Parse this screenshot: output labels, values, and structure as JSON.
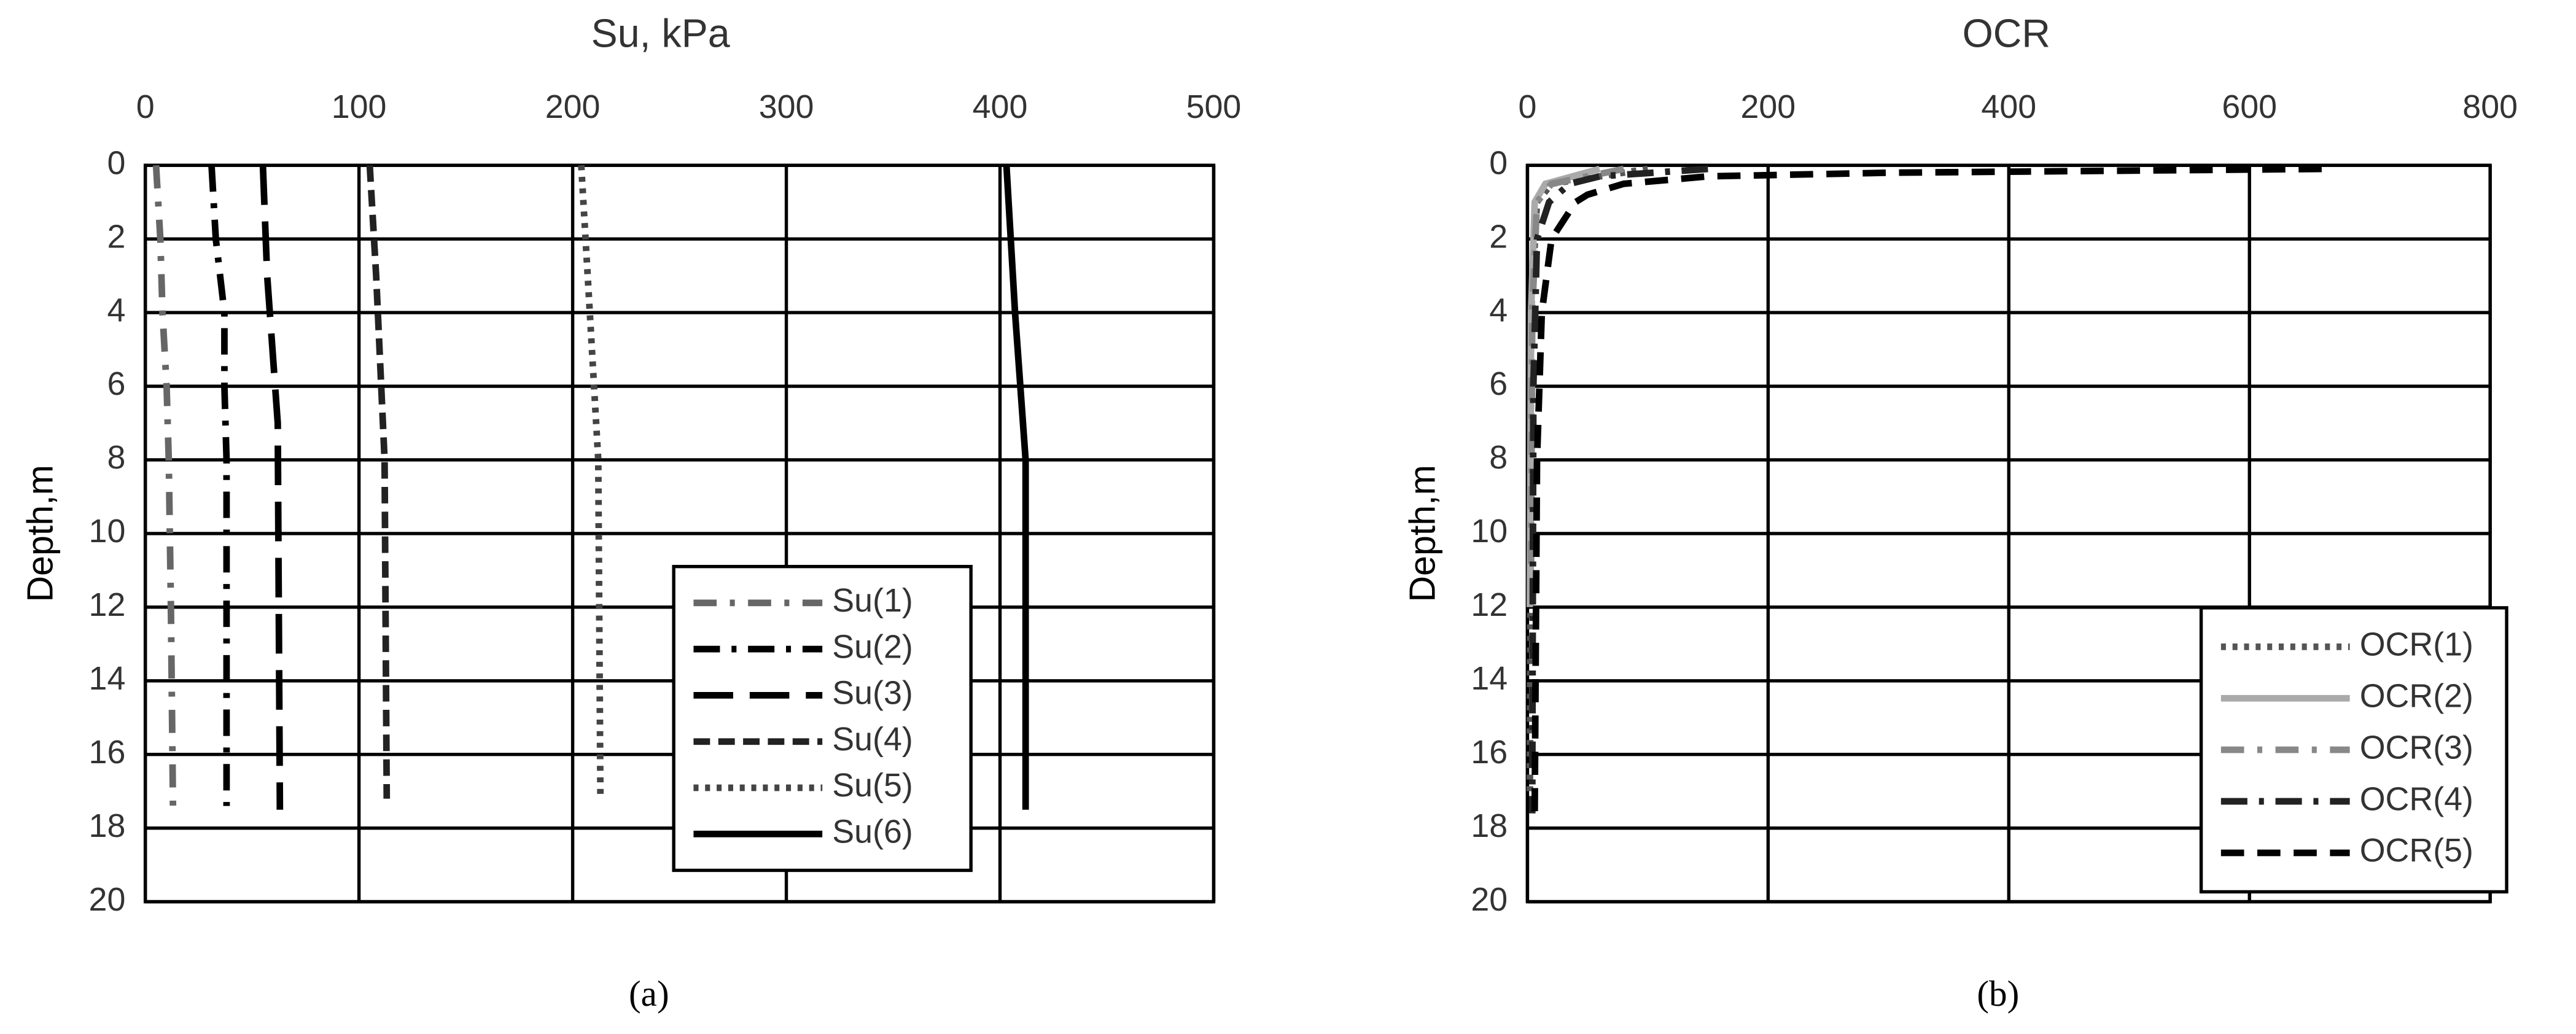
{
  "chart_data": [
    {
      "type": "line",
      "title": "Su, kPa",
      "y_label": "Depth,m",
      "caption": "(a)",
      "xlim": [
        0,
        500
      ],
      "xticks": [
        0,
        100,
        200,
        300,
        400,
        500
      ],
      "ylim": [
        0,
        20
      ],
      "yticks": [
        0,
        2,
        4,
        6,
        8,
        10,
        12,
        14,
        16,
        18,
        20
      ],
      "y_inverted": true,
      "grid": true,
      "series": [
        {
          "name": "Su(1)",
          "color": "#666666",
          "dash": "14 8 3 8",
          "width": 4,
          "x": [
            5,
            7,
            8,
            10,
            11,
            12,
            13
          ],
          "values": [
            0,
            2,
            4,
            6,
            8,
            12,
            17.6
          ]
        },
        {
          "name": "Su(2)",
          "color": "#000000",
          "dash": "16 7 3 7",
          "width": 4,
          "x": [
            31,
            33,
            37,
            37,
            38,
            38
          ],
          "values": [
            0,
            2,
            4,
            6,
            8,
            17.4
          ]
        },
        {
          "name": "Su(3)",
          "color": "#000000",
          "dash": "24 10",
          "width": 4,
          "x": [
            55,
            57,
            62,
            63
          ],
          "values": [
            0,
            3,
            7,
            17.5
          ]
        },
        {
          "name": "Su(4)",
          "color": "#222222",
          "dash": "10 5",
          "width": 4,
          "x": [
            105,
            108,
            112,
            113
          ],
          "values": [
            0,
            3,
            8,
            17.2
          ]
        },
        {
          "name": "Su(5)",
          "color": "#444444",
          "dash": "3 4",
          "width": 4,
          "x": [
            204,
            207,
            212,
            213
          ],
          "values": [
            0,
            3,
            8,
            17.2
          ]
        },
        {
          "name": "Su(6)",
          "color": "#000000",
          "dash": "",
          "width": 4,
          "x": [
            403,
            407,
            412,
            412
          ],
          "values": [
            0,
            4,
            8,
            17.5
          ]
        }
      ]
    },
    {
      "type": "line",
      "title": "OCR",
      "y_label": "Depth,m",
      "caption": "(b)",
      "xlim": [
        0,
        800
      ],
      "xticks": [
        0,
        200,
        400,
        600,
        800
      ],
      "ylim": [
        0,
        20
      ],
      "yticks": [
        0,
        2,
        4,
        6,
        8,
        10,
        12,
        14,
        16,
        18,
        20
      ],
      "y_inverted": true,
      "grid": true,
      "series": [
        {
          "name": "OCR(1)",
          "color": "#555555",
          "dash": "3 4",
          "width": 4,
          "x": [
            100,
            20,
            8,
            3,
            2
          ],
          "values": [
            0.1,
            0.5,
            1,
            4,
            17
          ]
        },
        {
          "name": "OCR(2)",
          "color": "#aaaaaa",
          "dash": "",
          "width": 4,
          "x": [
            60,
            15,
            6,
            3,
            2
          ],
          "values": [
            0.1,
            0.5,
            1,
            4,
            12
          ]
        },
        {
          "name": "OCR(3)",
          "color": "#888888",
          "dash": "14 8 3 8",
          "width": 4,
          "x": [
            80,
            20,
            8,
            4,
            3
          ],
          "values": [
            0.1,
            0.5,
            1,
            4,
            11
          ]
        },
        {
          "name": "OCR(4)",
          "color": "#222222",
          "dash": "16 7 3 7",
          "width": 4,
          "x": [
            150,
            60,
            35,
            18,
            8,
            5,
            4
          ],
          "values": [
            0.1,
            0.3,
            0.5,
            1,
            2,
            6,
            17.6
          ]
        },
        {
          "name": "OCR(5)",
          "color": "#000000",
          "dash": "14 8",
          "width": 4,
          "x": [
            660,
            300,
            150,
            80,
            50,
            40,
            20,
            12,
            8,
            6
          ],
          "values": [
            0.1,
            0.2,
            0.3,
            0.5,
            0.8,
            1,
            2,
            4,
            8,
            17.6
          ]
        }
      ]
    }
  ]
}
